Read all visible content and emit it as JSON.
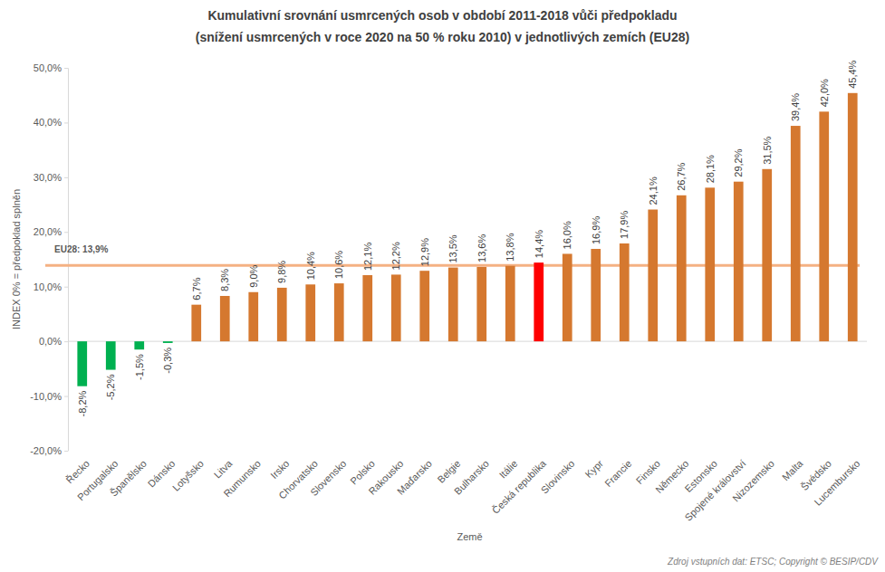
{
  "chart_data": {
    "type": "bar",
    "title": "Kumulativní srovnání usmrcených osob v období 2011-2018 vůči předpokladu",
    "subtitle": "(snížení usmrcených v roce 2020 na 50 % roku 2010) v jednotlivých zemích (EU28)",
    "x_label": "Země",
    "y_label": "INDEX 0% = předpoklad splněn",
    "source": "Zdroj vstupních dat: ETSC; Copyright © BESIP/CDV",
    "categories": [
      "Řecko",
      "Portugalsko",
      "Španělsko",
      "Dánsko",
      "Lotyšsko",
      "Litva",
      "Rumunsko",
      "Irsko",
      "Chorvatsko",
      "Slovensko",
      "Polsko",
      "Rakousko",
      "Maďarsko",
      "Belgie",
      "Bulharsko",
      "Itálie",
      "Česká republika",
      "Slovinsko",
      "Kypr",
      "Francie",
      "Finsko",
      "Německo",
      "Estonsko",
      "Spojené království",
      "Nizozemsko",
      "Malta",
      "Švédsko",
      "Lucembursko"
    ],
    "values": [
      -8.2,
      -5.2,
      -1.5,
      -0.3,
      6.7,
      8.3,
      9.0,
      9.8,
      10.4,
      10.6,
      12.1,
      12.2,
      12.9,
      13.5,
      13.6,
      13.8,
      14.4,
      16.0,
      16.9,
      17.9,
      24.1,
      26.7,
      28.1,
      29.2,
      31.5,
      39.4,
      42.0,
      45.4
    ],
    "value_labels": [
      "-8,2%",
      "-5,2%",
      "-1,5%",
      "-0,3%",
      "6,7%",
      "8,3%",
      "9,0%",
      "9,8%",
      "10,4%",
      "10,6%",
      "12,1%",
      "12,2%",
      "12,9%",
      "13,5%",
      "13,6%",
      "13,8%",
      "14,4%",
      "16,0%",
      "16,9%",
      "17,9%",
      "24,1%",
      "26,7%",
      "28,1%",
      "29,2%",
      "31,5%",
      "39,4%",
      "42,0%",
      "45,4%"
    ],
    "colors": [
      "#00b050",
      "#00b050",
      "#00b050",
      "#00b050",
      "#d5782f",
      "#d5782f",
      "#d5782f",
      "#d5782f",
      "#d5782f",
      "#d5782f",
      "#d5782f",
      "#d5782f",
      "#d5782f",
      "#d5782f",
      "#d5782f",
      "#d5782f",
      "#ff0000",
      "#d5782f",
      "#d5782f",
      "#d5782f",
      "#d5782f",
      "#d5782f",
      "#d5782f",
      "#d5782f",
      "#d5782f",
      "#d5782f",
      "#d5782f",
      "#d5782f"
    ],
    "reference": {
      "value": 13.9,
      "label": "EU28: 13,9%"
    },
    "ylim": [
      -20,
      50
    ],
    "yticks": [
      {
        "value": -20,
        "label": "-20,0%"
      },
      {
        "value": -10,
        "label": "-10,0%"
      },
      {
        "value": 0,
        "label": "0,0%"
      },
      {
        "value": 10,
        "label": "10,0%"
      },
      {
        "value": 20,
        "label": "20,0%"
      },
      {
        "value": 30,
        "label": "30,0%"
      },
      {
        "value": 40,
        "label": "40,0%"
      },
      {
        "value": 50,
        "label": "50,0%"
      }
    ],
    "grid": false,
    "data_labels": true
  }
}
